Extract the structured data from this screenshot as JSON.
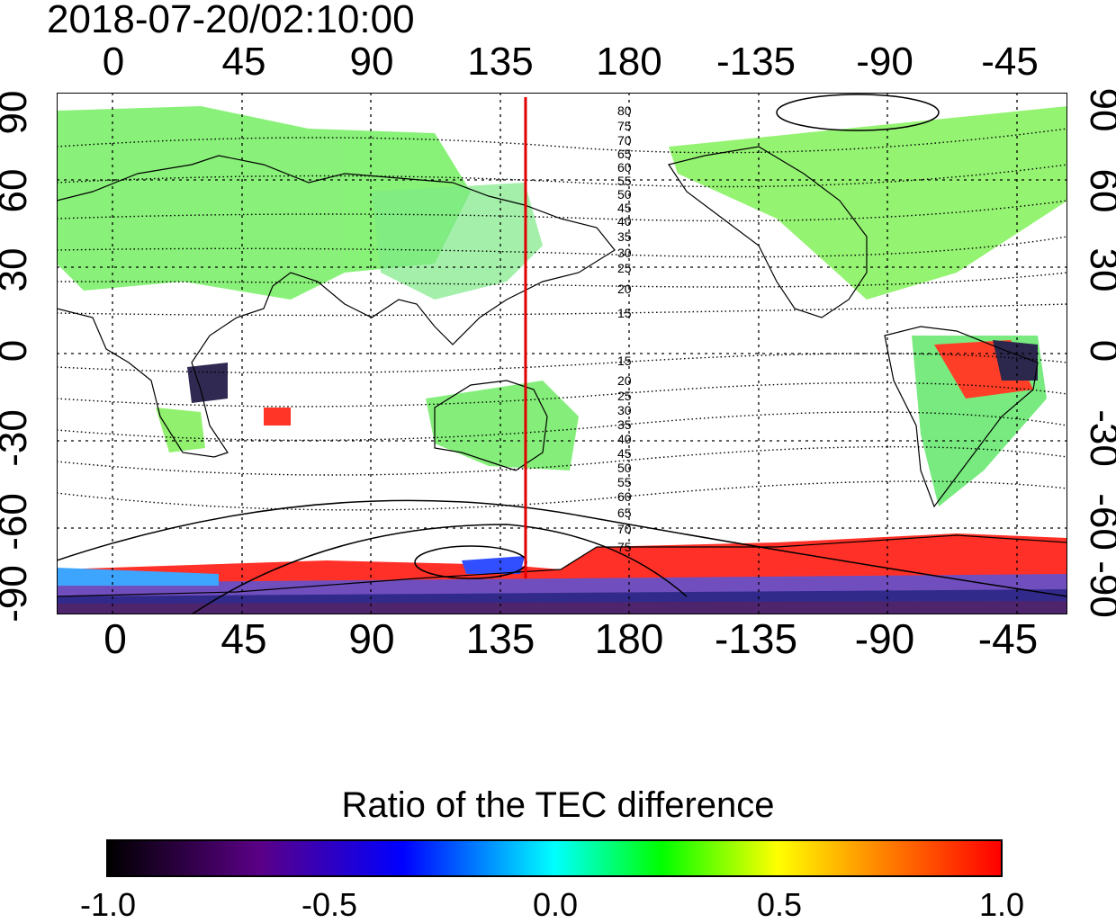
{
  "title": "2018-07-20/02:10:00",
  "lon_ticks": [
    "0",
    "45",
    "90",
    "135",
    "180",
    "-135",
    "-90",
    "-45"
  ],
  "lat_ticks_left": [
    "90",
    "60",
    "30",
    "0",
    "-30",
    "-60",
    "-90"
  ],
  "lat_ticks_right": [
    "90",
    "60",
    "30",
    "0",
    "-30",
    "-60",
    "-90"
  ],
  "contour_labels_north": [
    "80",
    "75",
    "70",
    "65",
    "60",
    "55",
    "50",
    "45",
    "40",
    "35",
    "30",
    "25",
    "20",
    "15"
  ],
  "contour_labels_south": [
    "15",
    "20",
    "25",
    "30",
    "35",
    "40",
    "45",
    "50",
    "55",
    "60",
    "65",
    "70",
    "75"
  ],
  "meridian_longitude": 147,
  "colorbar": {
    "title": "Ratio of the TEC difference",
    "ticks": [
      "-1.0",
      "-0.5",
      "0.0",
      "0.5",
      "1.0"
    ],
    "colors": [
      "#000000",
      "#0000ff",
      "#00ffff",
      "#00ff00",
      "#ffff00",
      "#ff0000"
    ]
  }
}
